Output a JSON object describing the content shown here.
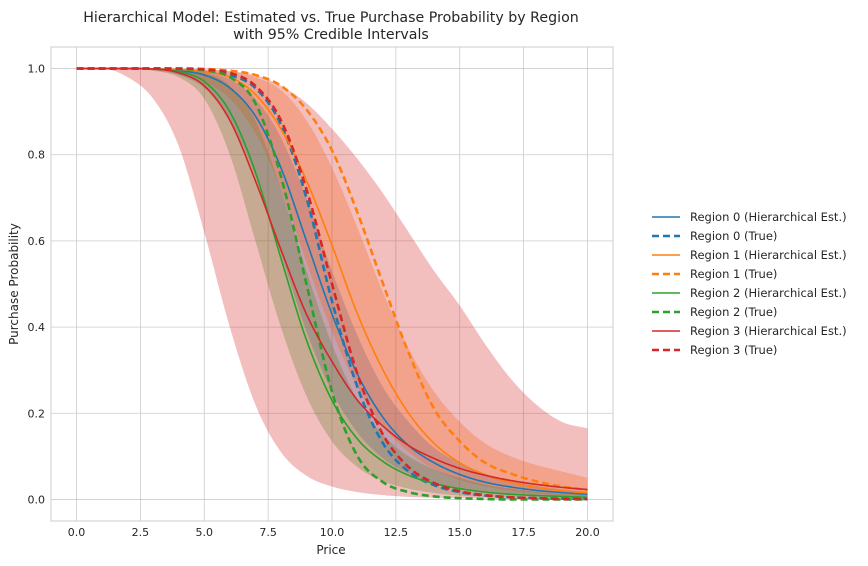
{
  "chart_data": {
    "type": "line",
    "title": "Hierarchical Model: Estimated vs. True Purchase Probability by Region",
    "subtitle": "with 95% Credible Intervals",
    "xlabel": "Price",
    "ylabel": "Purchase Probability",
    "xlim": [
      -1.0,
      21.0
    ],
    "ylim": [
      -0.05,
      1.05
    ],
    "xticks": [
      0.0,
      2.5,
      5.0,
      7.5,
      10.0,
      12.5,
      15.0,
      17.5,
      20.0
    ],
    "xtick_labels": [
      "0.0",
      "2.5",
      "5.0",
      "7.5",
      "10.0",
      "12.5",
      "15.0",
      "17.5",
      "20.0"
    ],
    "yticks": [
      0.0,
      0.2,
      0.4,
      0.6,
      0.8,
      1.0
    ],
    "ytick_labels": [
      "0.0",
      "0.2",
      "0.4",
      "0.6",
      "0.8",
      "1.0"
    ],
    "grid": true,
    "legend_position": "right-outside",
    "x": [
      0,
      1,
      2,
      3,
      4,
      5,
      6,
      7,
      8,
      9,
      10,
      11,
      12,
      13,
      14,
      15,
      16,
      17,
      18,
      19,
      20
    ],
    "series": [
      {
        "name": "Region 0 (Hierarchical Est.)",
        "style": "solid",
        "color": "#1f77b4",
        "values": [
          1.0,
          1.0,
          1.0,
          0.999,
          0.995,
          0.985,
          0.955,
          0.89,
          0.77,
          0.6,
          0.43,
          0.29,
          0.19,
          0.125,
          0.085,
          0.058,
          0.04,
          0.029,
          0.021,
          0.016,
          0.012
        ]
      },
      {
        "name": "Region 0 (True)",
        "style": "dashed",
        "color": "#1f77b4",
        "values": [
          1.0,
          1.0,
          1.0,
          1.0,
          0.999,
          0.995,
          0.985,
          0.955,
          0.87,
          0.7,
          0.46,
          0.26,
          0.13,
          0.065,
          0.033,
          0.017,
          0.009,
          0.005,
          0.003,
          0.002,
          0.001
        ]
      },
      {
        "name": "Region 1 (Hierarchical Est.)",
        "style": "solid",
        "color": "#ff7f0e",
        "values": [
          1.0,
          1.0,
          1.0,
          0.999,
          0.998,
          0.993,
          0.98,
          0.94,
          0.86,
          0.74,
          0.59,
          0.43,
          0.3,
          0.2,
          0.13,
          0.085,
          0.057,
          0.039,
          0.028,
          0.02,
          0.015
        ]
      },
      {
        "name": "Region 1 (True)",
        "style": "dashed",
        "color": "#ff7f0e",
        "values": [
          1.0,
          1.0,
          1.0,
          1.0,
          1.0,
          0.999,
          0.995,
          0.985,
          0.96,
          0.905,
          0.81,
          0.665,
          0.5,
          0.34,
          0.21,
          0.135,
          0.085,
          0.06,
          0.042,
          0.03,
          0.022
        ]
      },
      {
        "name": "Region 2 (Hierarchical Est.)",
        "style": "solid",
        "color": "#2ca02c",
        "values": [
          1.0,
          1.0,
          1.0,
          0.999,
          0.993,
          0.97,
          0.9,
          0.76,
          0.56,
          0.37,
          0.23,
          0.14,
          0.088,
          0.056,
          0.037,
          0.025,
          0.017,
          0.012,
          0.009,
          0.007,
          0.005
        ]
      },
      {
        "name": "Region 2 (True)",
        "style": "dashed",
        "color": "#2ca02c",
        "values": [
          1.0,
          1.0,
          1.0,
          1.0,
          0.999,
          0.996,
          0.98,
          0.92,
          0.75,
          0.5,
          0.25,
          0.1,
          0.04,
          0.017,
          0.007,
          0.003,
          0.001,
          0.0,
          0.0,
          0.0,
          0.0
        ]
      },
      {
        "name": "Region 3 (Hierarchical Est.)",
        "style": "solid",
        "color": "#d62728",
        "values": [
          1.0,
          1.0,
          1.0,
          0.999,
          0.99,
          0.96,
          0.88,
          0.74,
          0.58,
          0.43,
          0.32,
          0.23,
          0.17,
          0.125,
          0.095,
          0.072,
          0.056,
          0.044,
          0.035,
          0.028,
          0.023
        ]
      },
      {
        "name": "Region 3 (True)",
        "style": "dashed",
        "color": "#d62728",
        "values": [
          1.0,
          1.0,
          1.0,
          1.0,
          1.0,
          0.998,
          0.99,
          0.96,
          0.88,
          0.72,
          0.5,
          0.29,
          0.15,
          0.075,
          0.038,
          0.019,
          0.01,
          0.005,
          0.003,
          0.001,
          0.001
        ]
      }
    ],
    "intervals": [
      {
        "color": "#1f77b4",
        "upper": [
          1.0,
          1.0,
          1.0,
          1.0,
          0.998,
          0.993,
          0.975,
          0.93,
          0.84,
          0.7,
          0.53,
          0.38,
          0.26,
          0.18,
          0.12,
          0.085,
          0.06,
          0.043,
          0.032,
          0.024,
          0.018
        ],
        "lower": [
          1.0,
          1.0,
          0.999,
          0.996,
          0.985,
          0.955,
          0.88,
          0.75,
          0.57,
          0.39,
          0.25,
          0.155,
          0.095,
          0.06,
          0.038,
          0.025,
          0.016,
          0.011,
          0.008,
          0.006,
          0.004
        ]
      },
      {
        "color": "#ff7f0e",
        "upper": [
          1.0,
          1.0,
          1.0,
          1.0,
          0.999,
          0.998,
          0.993,
          0.98,
          0.95,
          0.88,
          0.77,
          0.63,
          0.48,
          0.35,
          0.25,
          0.18,
          0.13,
          0.1,
          0.08,
          0.065,
          0.05
        ],
        "lower": [
          1.0,
          1.0,
          1.0,
          0.997,
          0.99,
          0.97,
          0.93,
          0.85,
          0.72,
          0.55,
          0.39,
          0.26,
          0.17,
          0.11,
          0.07,
          0.045,
          0.03,
          0.02,
          0.014,
          0.01,
          0.008
        ]
      },
      {
        "color": "#2ca02c",
        "upper": [
          1.0,
          1.0,
          1.0,
          1.0,
          0.998,
          0.99,
          0.96,
          0.88,
          0.72,
          0.53,
          0.36,
          0.23,
          0.15,
          0.1,
          0.07,
          0.05,
          0.035,
          0.025,
          0.018,
          0.013,
          0.01
        ],
        "lower": [
          1.0,
          1.0,
          0.999,
          0.995,
          0.98,
          0.93,
          0.8,
          0.6,
          0.4,
          0.24,
          0.135,
          0.075,
          0.042,
          0.025,
          0.015,
          0.009,
          0.006,
          0.004,
          0.003,
          0.002,
          0.001
        ]
      },
      {
        "color": "#d62728",
        "upper": [
          1.0,
          1.0,
          1.0,
          1.0,
          0.999,
          0.998,
          0.994,
          0.985,
          0.96,
          0.92,
          0.86,
          0.79,
          0.71,
          0.62,
          0.53,
          0.45,
          0.36,
          0.28,
          0.22,
          0.18,
          0.165
        ],
        "lower": [
          1.0,
          1.0,
          0.98,
          0.93,
          0.82,
          0.62,
          0.4,
          0.22,
          0.11,
          0.055,
          0.03,
          0.017,
          0.01,
          0.006,
          0.004,
          0.003,
          0.002,
          0.001,
          0.001,
          0.0,
          0.0
        ]
      }
    ]
  }
}
